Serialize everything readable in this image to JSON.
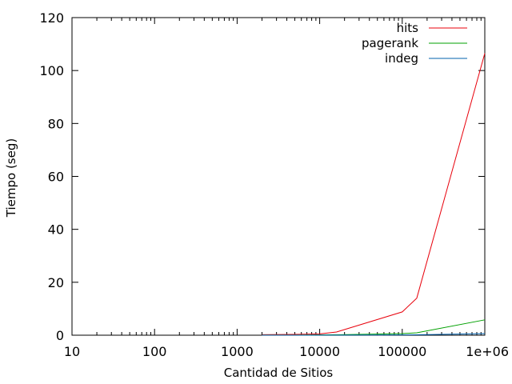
{
  "chart_data": {
    "type": "line",
    "title": "",
    "xlabel": "Cantidad de Sitios",
    "ylabel": "Tiempo (seg)",
    "x_scale": "log",
    "xlim": [
      10,
      1000000
    ],
    "ylim": [
      0,
      120
    ],
    "x_ticks": [
      10,
      100,
      1000,
      10000,
      100000,
      1000000
    ],
    "x_tick_labels": [
      "10",
      "100",
      "1000",
      "10000",
      "100000",
      "1e+06"
    ],
    "y_ticks": [
      0,
      20,
      40,
      60,
      80,
      100,
      120
    ],
    "y_tick_labels": [
      "0",
      "20",
      "40",
      "60",
      "80",
      "100",
      "120"
    ],
    "grid": false,
    "legend_position": "top-right",
    "series": [
      {
        "name": "hits",
        "color": "#e8000b",
        "x": [
          2000,
          5000,
          10000,
          16000,
          100000,
          150000,
          1000000
        ],
        "y": [
          0.2,
          0.3,
          0.5,
          1.2,
          8.8,
          14,
          106.5
        ]
      },
      {
        "name": "pagerank",
        "color": "#00a000",
        "x": [
          2000,
          5000,
          10000,
          16000,
          100000,
          150000,
          1000000
        ],
        "y": [
          0.05,
          0.05,
          0.1,
          0.15,
          0.6,
          0.9,
          5.8
        ]
      },
      {
        "name": "indeg",
        "color": "#0060ad",
        "x": [
          2000,
          5000,
          10000,
          16000,
          100000,
          150000,
          1000000
        ],
        "y": [
          0.01,
          0.01,
          0.02,
          0.03,
          0.1,
          0.15,
          0.6
        ]
      }
    ]
  }
}
